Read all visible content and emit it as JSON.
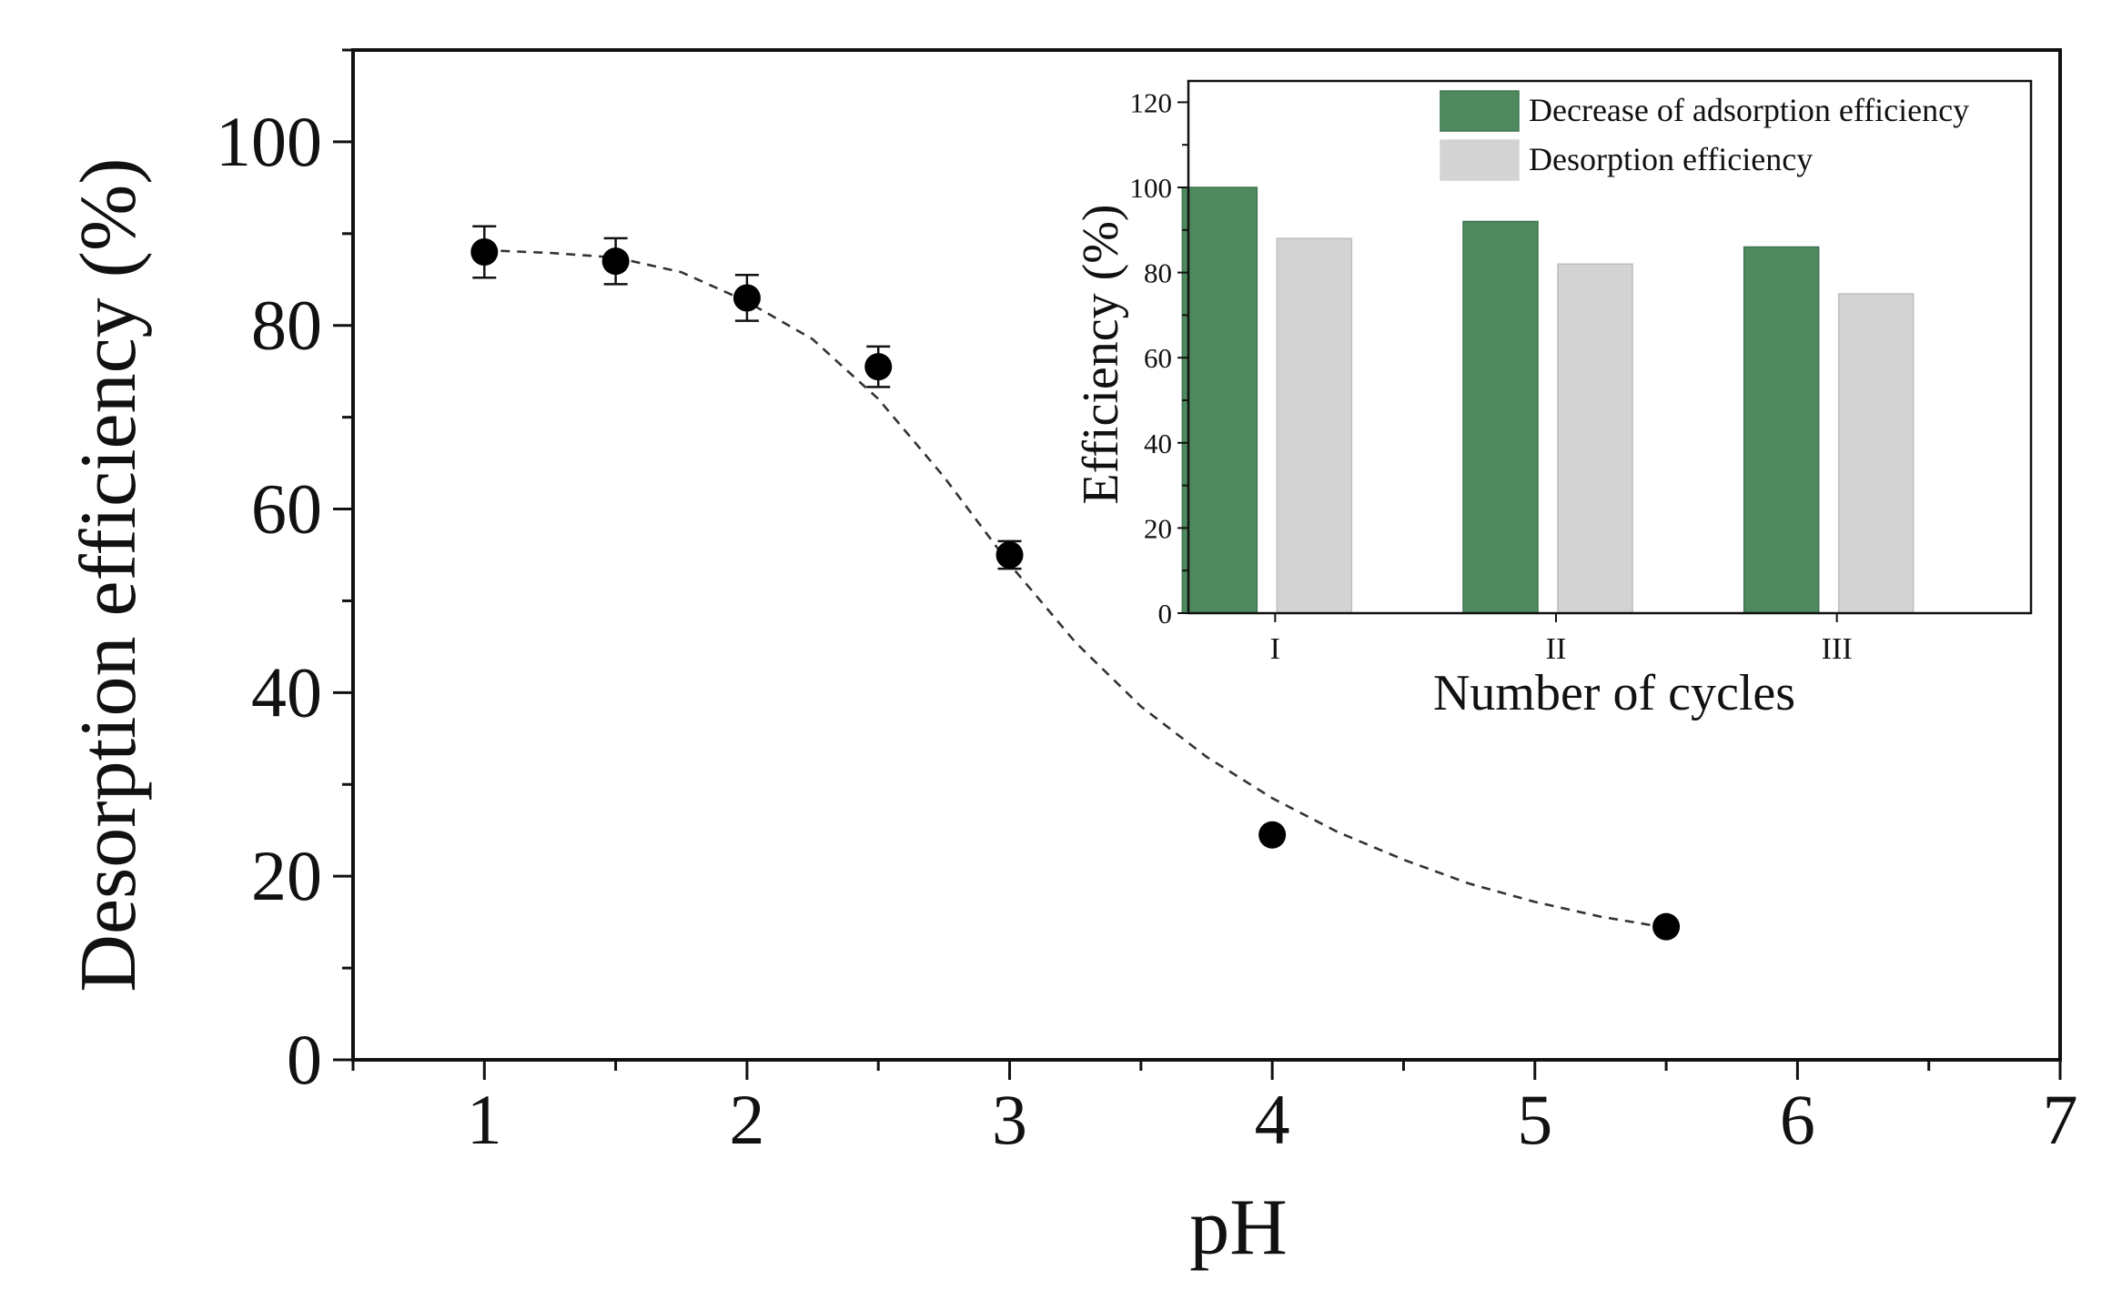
{
  "chart_data": [
    {
      "type": "scatter",
      "xlabel": "pH",
      "ylabel": "Desorption efficiency (%)",
      "xlim": [
        0.5,
        7
      ],
      "ylim": [
        0,
        110
      ],
      "xticks": [
        1,
        2,
        3,
        4,
        5,
        6,
        7
      ],
      "yticks": [
        0,
        20,
        40,
        60,
        80,
        100
      ],
      "x_tick_labels": [
        "1",
        "2",
        "3",
        "4",
        "5",
        "6",
        "7"
      ],
      "y_tick_labels": [
        "0",
        "20",
        "40",
        "60",
        "80",
        "100"
      ],
      "points": [
        {
          "x": 1.0,
          "y": 88,
          "err": 2.8
        },
        {
          "x": 1.5,
          "y": 87,
          "err": 2.5
        },
        {
          "x": 2.0,
          "y": 83,
          "err": 2.5
        },
        {
          "x": 2.5,
          "y": 75.5,
          "err": 2.2
        },
        {
          "x": 3.0,
          "y": 55,
          "err": 1.5
        },
        {
          "x": 4.0,
          "y": 24.5,
          "err": 0
        },
        {
          "x": 5.5,
          "y": 14.5,
          "err": 0
        }
      ],
      "fit_curve": {
        "style": "dashed",
        "x": [
          1.0,
          1.25,
          1.5,
          1.75,
          2.0,
          2.25,
          2.5,
          2.75,
          3.0,
          3.25,
          3.5,
          3.75,
          4.0,
          4.25,
          4.5,
          4.75,
          5.0,
          5.25,
          5.5
        ],
        "y": [
          88.2,
          87.9,
          87.4,
          85.8,
          82.6,
          78.5,
          72.0,
          63.5,
          54.0,
          45.5,
          38.5,
          33.0,
          28.5,
          24.8,
          21.8,
          19.2,
          17.2,
          15.6,
          14.4
        ]
      },
      "marker_color": "#000000"
    },
    {
      "type": "bar",
      "title": "",
      "xlabel": "Number of cycles",
      "ylabel": "Efficiency (%)",
      "ylim": [
        0,
        125
      ],
      "yticks": [
        0,
        20,
        40,
        60,
        80,
        100,
        120
      ],
      "y_tick_labels": [
        "0",
        "20",
        "40",
        "60",
        "80",
        "100",
        "120"
      ],
      "categories": [
        "I",
        "II",
        "III"
      ],
      "series": [
        {
          "name": "Decrease of adsorption efficiency",
          "values": [
            100,
            92,
            86
          ],
          "color": "#4e8a5e"
        },
        {
          "name": "Desorption efficiency",
          "values": [
            88,
            82,
            75
          ],
          "color": "#d3d3d3"
        }
      ],
      "legend": "top-right"
    }
  ]
}
